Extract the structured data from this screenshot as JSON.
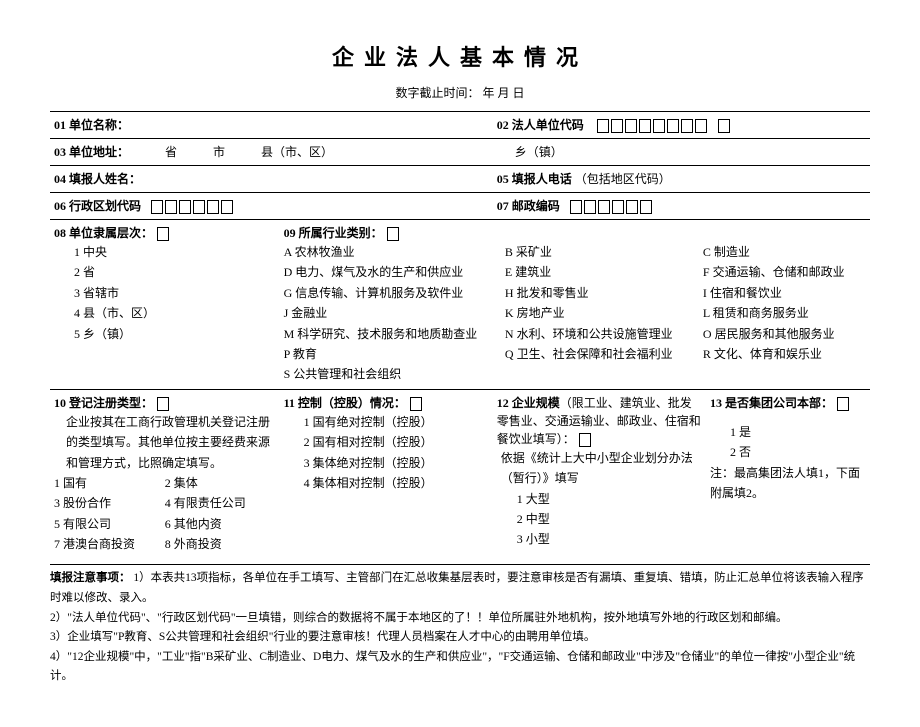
{
  "title": "企业法人基本情况",
  "subtitle": "数字截止时间：  年 月 日",
  "f01": {
    "label": "01 单位名称："
  },
  "f02": {
    "label": "02 法人单位代码"
  },
  "f03": {
    "label": "03 单位地址：",
    "prov": "省",
    "city": "市",
    "county": "县（市、区）",
    "town": "乡（镇）"
  },
  "f04": {
    "label": "04 填报人姓名："
  },
  "f05": {
    "label": "05 填报人电话",
    "suffix": "（包括地区代码）"
  },
  "f06": {
    "label": "06 行政区划代码"
  },
  "f07": {
    "label": "07 邮政编码"
  },
  "f08": {
    "label": "08 单位隶属层次：",
    "items": [
      "1 中央",
      "2 省",
      "3 省辖市",
      "4 县（市、区）",
      "5 乡（镇）"
    ]
  },
  "f09": {
    "label": "09 所属行业类别：",
    "rows": [
      [
        "A 农林牧渔业",
        "B 采矿业",
        "C 制造业"
      ],
      [
        "D 电力、煤气及水的生产和供应业",
        "E 建筑业",
        "F 交通运输、仓储和邮政业"
      ],
      [
        "G 信息传输、计算机服务及软件业",
        "H 批发和零售业",
        "I 住宿和餐饮业"
      ],
      [
        "J 金融业",
        "K 房地产业",
        "L 租赁和商务服务业"
      ],
      [
        "M 科学研究、技术服务和地质勘查业",
        "N 水利、环境和公共设施管理业",
        "O 居民服务和其他服务业"
      ],
      [
        "P 教育",
        "Q 卫生、社会保障和社会福利业",
        "R 文化、体育和娱乐业"
      ],
      [
        "S 公共管理和社会组织",
        "",
        ""
      ]
    ]
  },
  "f10": {
    "label": "10 登记注册类型：",
    "desc": "企业按其在工商行政管理机关登记注册的类型填写。其他单位按主要经费来源和管理方式，比照确定填写。",
    "items": [
      [
        "1 国有",
        "2 集体"
      ],
      [
        "3 股份合作",
        "4 有限责任公司"
      ],
      [
        "5 有限公司",
        "6 其他内资"
      ],
      [
        "7 港澳台商投资",
        "8 外商投资"
      ]
    ]
  },
  "f11": {
    "label": "11 控制（控股）情况：",
    "items": [
      "1 国有绝对控制（控股）",
      "2 国有相对控制（控股）",
      "3 集体绝对控制（控股）",
      "4 集体相对控制（控股）"
    ]
  },
  "f12": {
    "label": "12 企业规模",
    "suffix": "（限工业、建筑业、批发零售业、交通运输业、邮政业、住宿和餐饮业填写）：",
    "desc": "依据《统计上大中小型企业划分办法（暂行）》填写",
    "items": [
      "1 大型",
      "2 中型",
      "3 小型"
    ]
  },
  "f13": {
    "label": "13 是否集团公司本部：",
    "items": [
      "1 是",
      "2 否"
    ],
    "note": "注：最高集团法人填1，下面附属填2。"
  },
  "notes": {
    "label": "填报注意事项：",
    "lines": [
      "1）本表共13项指标，各单位在手工填写、主管部门在汇总收集基层表时，要注意审核是否有漏填、重复填、错填，防止汇总单位将该表输入程序时难以修改、录入。",
      "2）\"法人单位代码\"、\"行政区划代码\"一旦填错，则综合的数据将不属于本地区的了！！单位所属驻外地机构，按外地填写外地的行政区划和邮编。",
      "3）企业填写\"P教育、S公共管理和社会组织\"行业的要注意审核！代理人员档案在人才中心的由聘用单位填。",
      "4）\"12企业规模\"中，\"工业\"指\"B采矿业、C制造业、D电力、煤气及水的生产和供应业\"，\"F交通运输、仓储和邮政业\"中涉及\"仓储业\"的单位一律按\"小型企业\"统计。"
    ]
  }
}
